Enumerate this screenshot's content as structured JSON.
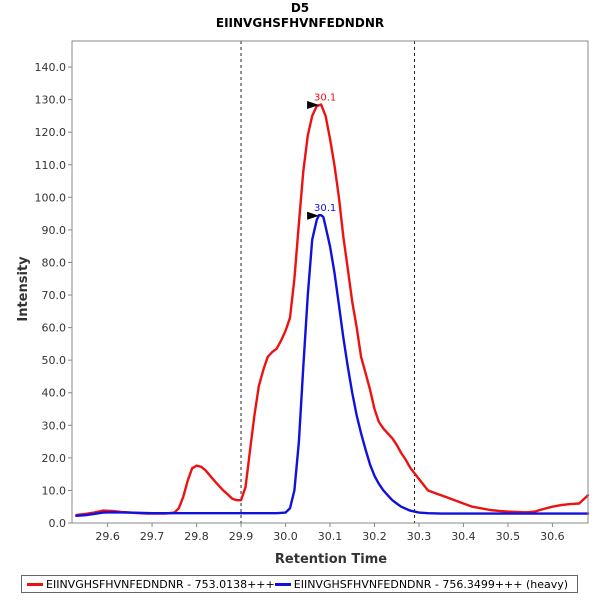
{
  "chart_data": {
    "type": "line",
    "title": "D5",
    "subtitle": "EIINVGHSFHVNFEDNDNR",
    "xlabel": "Retention Time",
    "ylabel": "Intensity",
    "xlim": [
      29.52,
      30.68
    ],
    "ylim": [
      0,
      148
    ],
    "x_ticks": [
      "29.6",
      "29.7",
      "29.8",
      "29.9",
      "30.0",
      "30.1",
      "30.2",
      "30.3",
      "30.4",
      "30.5",
      "30.6"
    ],
    "y_ticks": [
      "0.0",
      "10.0",
      "20.0",
      "30.0",
      "40.0",
      "50.0",
      "60.0",
      "70.0",
      "80.0",
      "90.0",
      "100.0",
      "110.0",
      "120.0",
      "130.0",
      "140.0"
    ],
    "boundaries": [
      29.9,
      30.29
    ],
    "series": [
      {
        "name": "EIINVGHSFHVNFEDNDNR - 753.0138+++",
        "color": "#ee1111",
        "peak_label": "30.1",
        "peak": [
          30.08,
          128.5
        ],
        "x": [
          29.53,
          29.55,
          29.57,
          29.59,
          29.61,
          29.63,
          29.65,
          29.67,
          29.69,
          29.71,
          29.73,
          29.75,
          29.76,
          29.77,
          29.78,
          29.79,
          29.8,
          29.81,
          29.82,
          29.84,
          29.86,
          29.87,
          29.88,
          29.89,
          29.9,
          29.91,
          29.92,
          29.93,
          29.94,
          29.95,
          29.96,
          29.97,
          29.98,
          29.99,
          30.0,
          30.01,
          30.02,
          30.03,
          30.04,
          30.05,
          30.06,
          30.07,
          30.08,
          30.09,
          30.1,
          30.11,
          30.12,
          30.13,
          30.14,
          30.15,
          30.16,
          30.17,
          30.18,
          30.19,
          30.2,
          30.21,
          30.22,
          30.23,
          30.24,
          30.25,
          30.26,
          30.27,
          30.28,
          30.3,
          30.32,
          30.34,
          30.36,
          30.38,
          30.4,
          30.42,
          30.44,
          30.46,
          30.48,
          30.5,
          30.52,
          30.54,
          30.56,
          30.58,
          30.6,
          30.62,
          30.64,
          30.66,
          30.68
        ],
        "values": [
          2.5,
          2.8,
          3.2,
          3.8,
          3.7,
          3.4,
          3.2,
          3.0,
          2.9,
          2.9,
          2.9,
          3.2,
          4.5,
          8.0,
          13.0,
          16.8,
          17.6,
          17.3,
          16.2,
          13.0,
          10.0,
          8.8,
          7.5,
          7.0,
          7.0,
          11.0,
          22.0,
          33.0,
          42.0,
          47.0,
          51.0,
          52.5,
          53.5,
          56.0,
          59.0,
          63.0,
          75.0,
          92.0,
          108.0,
          119.0,
          125.0,
          128.0,
          128.5,
          125.0,
          118.0,
          110.0,
          100.0,
          88.0,
          78.0,
          68.0,
          60.0,
          51.0,
          46.0,
          41.0,
          35.0,
          31.0,
          29.0,
          27.5,
          26.0,
          24.0,
          21.5,
          19.5,
          17.0,
          13.5,
          10.0,
          9.0,
          8.0,
          7.0,
          6.0,
          5.0,
          4.5,
          4.0,
          3.7,
          3.5,
          3.4,
          3.3,
          3.5,
          4.3,
          5.0,
          5.5,
          5.8,
          6.0,
          8.5
        ]
      },
      {
        "name": "EIINVGHSFHVNFEDNDNR - 756.3499+++ (heavy)",
        "color": "#1111dd",
        "peak_label": "30.1",
        "peak": [
          30.08,
          94.5
        ],
        "x": [
          29.53,
          29.55,
          29.57,
          29.59,
          29.61,
          29.65,
          29.7,
          29.75,
          29.8,
          29.85,
          29.9,
          29.95,
          29.98,
          30.0,
          30.01,
          30.02,
          30.03,
          30.04,
          30.05,
          30.06,
          30.07,
          30.075,
          30.08,
          30.085,
          30.09,
          30.1,
          30.11,
          30.12,
          30.13,
          30.14,
          30.15,
          30.16,
          30.17,
          30.18,
          30.19,
          30.2,
          30.21,
          30.22,
          30.23,
          30.24,
          30.25,
          30.26,
          30.28,
          30.3,
          30.32,
          30.35,
          30.4,
          30.5,
          30.6,
          30.68
        ],
        "values": [
          2.2,
          2.4,
          2.8,
          3.2,
          3.3,
          3.2,
          3.0,
          3.0,
          3.0,
          3.0,
          3.0,
          3.0,
          3.0,
          3.2,
          4.5,
          10.0,
          25.0,
          48.0,
          70.0,
          87.0,
          93.0,
          94.5,
          94.5,
          94.0,
          91.0,
          85.0,
          77.0,
          67.0,
          57.0,
          48.0,
          40.0,
          33.0,
          27.5,
          22.5,
          18.0,
          14.5,
          12.0,
          10.0,
          8.5,
          7.0,
          6.0,
          5.0,
          3.8,
          3.2,
          3.0,
          2.9,
          2.9,
          2.9,
          2.9,
          2.9
        ]
      }
    ]
  }
}
